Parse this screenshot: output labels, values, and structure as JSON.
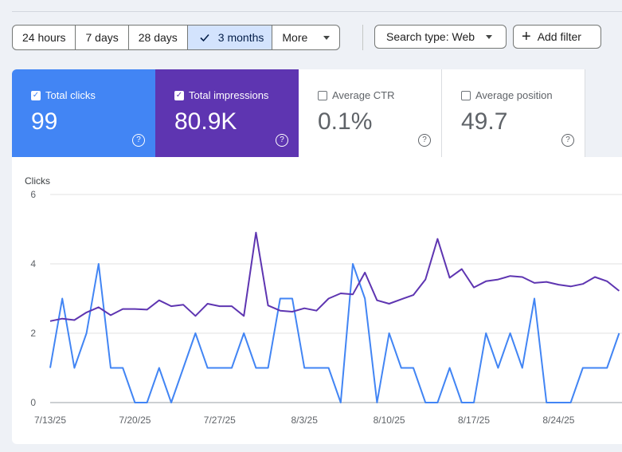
{
  "date_range": {
    "options": [
      {
        "label": "24 hours",
        "selected": false
      },
      {
        "label": "7 days",
        "selected": false
      },
      {
        "label": "28 days",
        "selected": false
      },
      {
        "label": "3 months",
        "selected": true
      },
      {
        "label": "More",
        "selected": false
      }
    ]
  },
  "filters": {
    "search_type": "Search type: Web",
    "add_filter": "Add filter"
  },
  "metrics": [
    {
      "label": "Total clicks",
      "value": "99",
      "checked": true,
      "color": "#4285f4"
    },
    {
      "label": "Total impressions",
      "value": "80.9K",
      "checked": true,
      "color": "#5e35b1"
    },
    {
      "label": "Average CTR",
      "value": "0.1%",
      "checked": false
    },
    {
      "label": "Average position",
      "value": "49.7",
      "checked": false
    }
  ],
  "chart_data": {
    "type": "line",
    "ylabel": "Clicks",
    "ylim": [
      0,
      6
    ],
    "yticks": [
      0,
      2,
      4,
      6
    ],
    "x_tick_labels": [
      "7/13/25",
      "7/20/25",
      "7/27/25",
      "8/3/25",
      "8/10/25",
      "8/17/25",
      "8/24/25"
    ],
    "grid": true,
    "series": [
      {
        "name": "Total clicks",
        "color": "#4285f4",
        "values": [
          1,
          3,
          1,
          2,
          4,
          1,
          1,
          0,
          0,
          1,
          0,
          1,
          2,
          1,
          1,
          1,
          2,
          1,
          1,
          3,
          3,
          1,
          1,
          1,
          0,
          4,
          3,
          0,
          2,
          1,
          1,
          0,
          0,
          1,
          0,
          0,
          2,
          1,
          2,
          1,
          3,
          0,
          0,
          0,
          1,
          1,
          1,
          2
        ]
      },
      {
        "name": "Total impressions",
        "color": "#5e35b1",
        "unit_note": "right axis not shown; plotted on same scale",
        "values": [
          2.35,
          2.42,
          2.38,
          2.6,
          2.75,
          2.52,
          2.7,
          2.7,
          2.68,
          2.95,
          2.78,
          2.82,
          2.5,
          2.85,
          2.78,
          2.78,
          2.5,
          4.9,
          2.8,
          2.65,
          2.62,
          2.72,
          2.65,
          3.0,
          3.15,
          3.12,
          3.75,
          2.95,
          2.85,
          2.98,
          3.1,
          3.55,
          4.72,
          3.6,
          3.85,
          3.32,
          3.5,
          3.55,
          3.65,
          3.62,
          3.45,
          3.48,
          3.4,
          3.35,
          3.42,
          3.62,
          3.5,
          3.22
        ]
      }
    ]
  },
  "icons": {
    "check": "check-icon",
    "dropdown": "chevron-down-icon",
    "add": "plus-icon",
    "help": "help-icon"
  }
}
